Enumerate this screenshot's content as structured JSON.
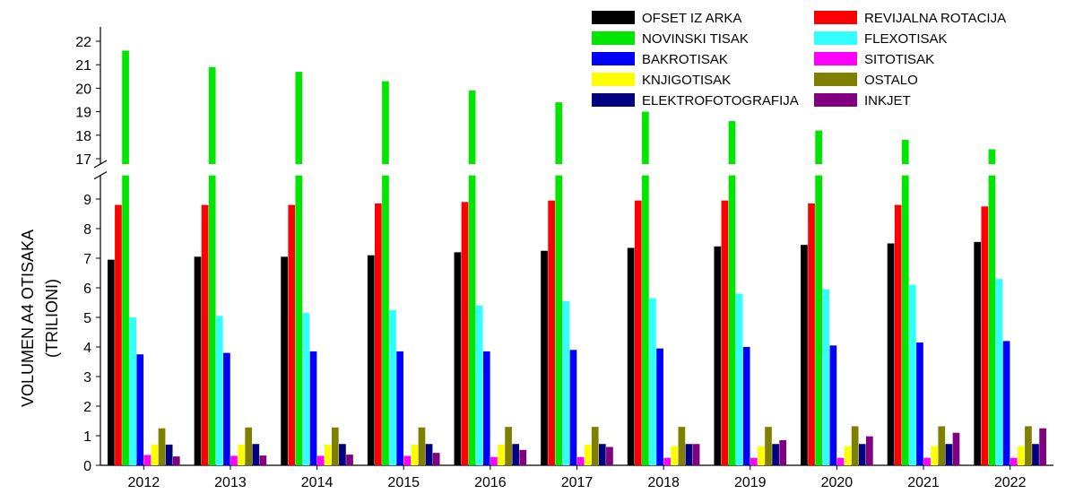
{
  "chart_data": {
    "type": "bar",
    "categories": [
      "2012",
      "2013",
      "2014",
      "2015",
      "2016",
      "2017",
      "2018",
      "2019",
      "2020",
      "2021",
      "2022"
    ],
    "ylabel": [
      "VOLUMEN A4 OTISAKA",
      "(TRILIONI)"
    ],
    "y_break": {
      "lower_range": [
        0,
        9.5
      ],
      "upper_range": [
        17,
        22
      ]
    },
    "ylim": [
      0,
      22
    ],
    "lower_ticks": [
      "0",
      "1",
      "2",
      "3",
      "4",
      "5",
      "6",
      "7",
      "8",
      "9"
    ],
    "upper_ticks": [
      "17",
      "18",
      "19",
      "20",
      "21",
      "22"
    ],
    "grid": false,
    "legend_position": "top-right",
    "series": [
      {
        "name": "OFSET IZ ARKA",
        "color": "#000000",
        "values": [
          6.95,
          7.05,
          7.05,
          7.1,
          7.2,
          7.25,
          7.35,
          7.4,
          7.45,
          7.5,
          7.55
        ]
      },
      {
        "name": "REVIJALNA ROTACIJA",
        "color": "#ff0000",
        "values": [
          8.8,
          8.8,
          8.8,
          8.85,
          8.9,
          8.95,
          8.95,
          8.95,
          8.85,
          8.8,
          8.75
        ]
      },
      {
        "name": "NOVINSKI TISAK",
        "color": "#00e600",
        "values": [
          21.6,
          20.9,
          20.7,
          20.3,
          19.9,
          19.4,
          19.0,
          18.6,
          18.2,
          17.8,
          17.4
        ]
      },
      {
        "name": "FLEXOTISAK",
        "color": "#33ffff",
        "values": [
          5.0,
          5.05,
          5.15,
          5.25,
          5.4,
          5.55,
          5.65,
          5.8,
          5.95,
          6.1,
          6.3
        ]
      },
      {
        "name": "BAKROTISAK",
        "color": "#0000ff",
        "values": [
          3.75,
          3.8,
          3.85,
          3.85,
          3.85,
          3.9,
          3.95,
          4.0,
          4.05,
          4.15,
          4.2
        ]
      },
      {
        "name": "SITOTISAK",
        "color": "#ff00ff",
        "values": [
          0.35,
          0.32,
          0.32,
          0.32,
          0.28,
          0.28,
          0.25,
          0.25,
          0.25,
          0.25,
          0.25
        ]
      },
      {
        "name": "KNJIGOTISAK",
        "color": "#ffff00",
        "values": [
          0.7,
          0.7,
          0.7,
          0.7,
          0.7,
          0.7,
          0.65,
          0.65,
          0.65,
          0.65,
          0.65
        ]
      },
      {
        "name": "OSTALO",
        "color": "#808000",
        "values": [
          1.25,
          1.28,
          1.28,
          1.28,
          1.3,
          1.3,
          1.3,
          1.3,
          1.32,
          1.32,
          1.32
        ]
      },
      {
        "name": "ELEKTROFOTOGRAFIJA",
        "color": "#000080",
        "values": [
          0.7,
          0.72,
          0.72,
          0.72,
          0.72,
          0.72,
          0.72,
          0.72,
          0.72,
          0.72,
          0.72
        ]
      },
      {
        "name": "INKJET",
        "color": "#800080",
        "values": [
          0.3,
          0.33,
          0.36,
          0.42,
          0.52,
          0.62,
          0.72,
          0.85,
          0.98,
          1.1,
          1.25
        ]
      }
    ]
  }
}
